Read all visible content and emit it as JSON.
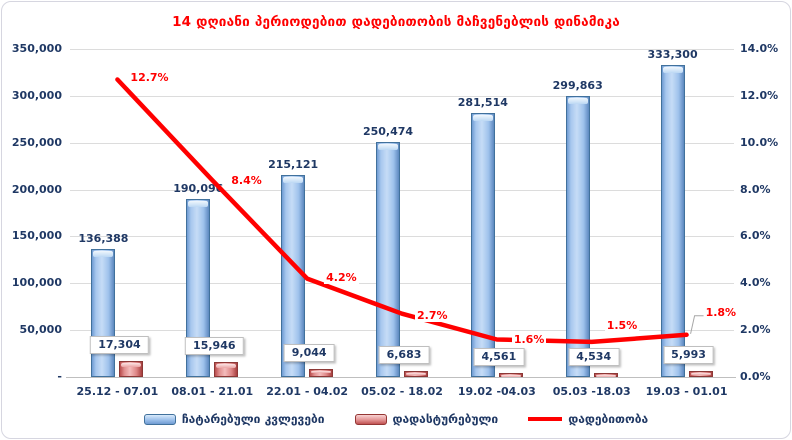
{
  "title": "14 დღიანი პერიოდებით დადებითობის მაჩვენებლის დინამიკა",
  "colors": {
    "title_text": "#FF0000",
    "axis_text": "#1F3864",
    "bar_tests": "#9DC3E6",
    "bar_confirmed": "#DD8585",
    "line": "#FF0000",
    "gridline": "#DCDCDC"
  },
  "chart_data": {
    "type": "bar",
    "subtype": "bar+line combo, dual axis",
    "title": "14 დღიანი პერიოდებით დადებითობის მაჩვენებლის დინამიკა",
    "categories": [
      "25.12 - 07.01",
      "08.01 - 21.01",
      "22.01 - 04.02",
      "05.02 - 18.02",
      "19.02 -04.03",
      "05.03 -18.03",
      "19.03 - 01.01"
    ],
    "series": [
      {
        "name": "ჩატარებული კვლევები",
        "type": "bar",
        "axis": "left",
        "values": [
          136388,
          190096,
          215121,
          250474,
          281514,
          299863,
          333300
        ],
        "labels": [
          "136,388",
          "190,096",
          "215,121",
          "250,474",
          "281,514",
          "299,863",
          "333,300"
        ]
      },
      {
        "name": "დადასტურებული",
        "type": "bar",
        "axis": "left",
        "values": [
          17304,
          15946,
          9044,
          6683,
          4561,
          4534,
          5993
        ],
        "labels": [
          "17,304",
          "15,946",
          "9,044",
          "6,683",
          "4,561",
          "4,534",
          "5,993"
        ]
      },
      {
        "name": "დადებითობა",
        "type": "line",
        "axis": "right",
        "values": [
          12.7,
          8.4,
          4.2,
          2.7,
          1.6,
          1.5,
          1.8
        ],
        "labels": [
          "12.7%",
          "8.4%",
          "4.2%",
          "2.7%",
          "1.6%",
          "1.5%",
          "1.8%"
        ]
      }
    ],
    "left_axis": {
      "min": 0,
      "max": 350000,
      "step": 50000,
      "tick_labels": [
        "350,000",
        "300,000",
        "250,000",
        "200,000",
        "150,000",
        "100,000",
        "50,000",
        "-"
      ]
    },
    "right_axis": {
      "min": 0,
      "max": 14,
      "step": 2,
      "tick_labels": [
        "14.0%",
        "12.0%",
        "10.0%",
        "8.0%",
        "6.0%",
        "4.0%",
        "2.0%",
        "0.0%"
      ]
    },
    "grid": true,
    "legend_position": "bottom"
  }
}
